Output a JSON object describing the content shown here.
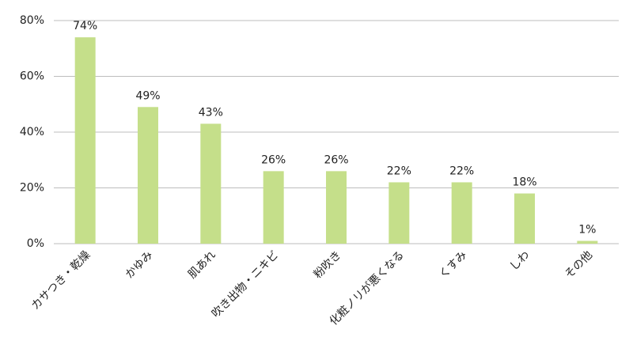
{
  "chart_data": {
    "type": "bar",
    "categories": [
      "カサつき・乾燥",
      "かゆみ",
      "肌あれ",
      "吹き出物・ニキビ",
      "粉吹き",
      "化粧ノリが悪くなる",
      "くすみ",
      "しわ",
      "その他"
    ],
    "values": [
      74,
      49,
      43,
      26,
      26,
      22,
      22,
      18,
      1
    ],
    "value_labels": [
      "74%",
      "49%",
      "43%",
      "26%",
      "26%",
      "22%",
      "22%",
      "18%",
      "1%"
    ],
    "color": "#c5df8a",
    "ylim": [
      0,
      80
    ],
    "yticks": [
      {
        "value": 0,
        "label": "0%"
      },
      {
        "value": 20,
        "label": "20%"
      },
      {
        "value": 40,
        "label": "40%"
      },
      {
        "value": 60,
        "label": "60%"
      },
      {
        "value": 80,
        "label": "80%"
      }
    ],
    "grid": true
  }
}
